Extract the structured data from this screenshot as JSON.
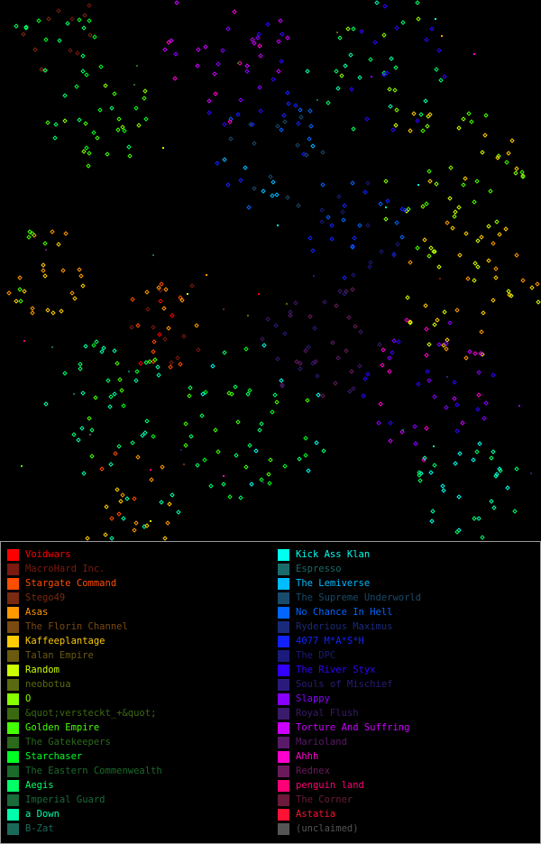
{
  "map": {
    "background": "#000000",
    "marker_shape": "diamond"
  },
  "legend": {
    "left": [
      {
        "name": "Voidwars",
        "color": "#ff0000",
        "active": true
      },
      {
        "name": "MacroHard Inc.",
        "color": "#7a1a10",
        "active": false
      },
      {
        "name": "Stargate Command",
        "color": "#ff4d00",
        "active": true
      },
      {
        "name": "Stego49",
        "color": "#7a2a10",
        "active": false
      },
      {
        "name": "Asas",
        "color": "#ff9900",
        "active": true
      },
      {
        "name": "The Florin Channel",
        "color": "#7a4a10",
        "active": false
      },
      {
        "name": "Kaffeeplantage",
        "color": "#ffcc00",
        "active": true
      },
      {
        "name": "Talan Empire",
        "color": "#6a5a10",
        "active": false
      },
      {
        "name": "Random",
        "color": "#ccff00",
        "active": true
      },
      {
        "name": "neobotua",
        "color": "#5a6a10",
        "active": false
      },
      {
        "name": "O",
        "color": "#88ff00",
        "active": true
      },
      {
        "name": "&quot;versteckt_+&quot;",
        "color": "#3a6a10",
        "active": false
      },
      {
        "name": "Golden Empire",
        "color": "#44ff00",
        "active": true
      },
      {
        "name": "The Gatekeepers",
        "color": "#2a6a1a",
        "active": false
      },
      {
        "name": "Starchaser",
        "color": "#00ff22",
        "active": true
      },
      {
        "name": "The Eastern Commenwealth",
        "color": "#1a6a2a",
        "active": false
      },
      {
        "name": "Aegis",
        "color": "#00ff66",
        "active": true
      },
      {
        "name": "Imperial Guard",
        "color": "#1a6a3a",
        "active": false
      },
      {
        "name": "a Down",
        "color": "#00ffaa",
        "active": true
      },
      {
        "name": "B-Zat",
        "color": "#1a6a5a",
        "active": false
      }
    ],
    "right": [
      {
        "name": "Kick Ass Klan",
        "color": "#00ffee",
        "active": true
      },
      {
        "name": "Espresso",
        "color": "#1a6a6a",
        "active": false
      },
      {
        "name": "The Lemiverse",
        "color": "#00bbff",
        "active": true
      },
      {
        "name": "The Supreme Underworld",
        "color": "#1a4a6a",
        "active": false
      },
      {
        "name": "No Chance In Hell",
        "color": "#0066ff",
        "active": true
      },
      {
        "name": "Ryderious Maximus",
        "color": "#1a2a7a",
        "active": false
      },
      {
        "name": "4077 M*A*S*H",
        "color": "#1122ff",
        "active": true
      },
      {
        "name": "The DPC",
        "color": "#1a1a7a",
        "active": false
      },
      {
        "name": "The River Styx",
        "color": "#3300ff",
        "active": true
      },
      {
        "name": "Souls of Mischief",
        "color": "#2a1a7a",
        "active": false
      },
      {
        "name": "Slappy",
        "color": "#8800ff",
        "active": true
      },
      {
        "name": "Royal Flush",
        "color": "#3a1a6a",
        "active": false
      },
      {
        "name": "Torture And Suffring",
        "color": "#cc00ff",
        "active": true
      },
      {
        "name": "Marioland",
        "color": "#5a1a6a",
        "active": false
      },
      {
        "name": "Ahhh",
        "color": "#ff00cc",
        "active": true
      },
      {
        "name": "Rednex",
        "color": "#6a1a5a",
        "active": false
      },
      {
        "name": "penguin land",
        "color": "#ff0077",
        "active": true
      },
      {
        "name": "The Corner",
        "color": "#6a1a3a",
        "active": false
      },
      {
        "name": "Astatia",
        "color": "#ff1133",
        "active": true
      },
      {
        "name": "(unclaimed)",
        "color": "#555555",
        "active": false
      }
    ]
  }
}
